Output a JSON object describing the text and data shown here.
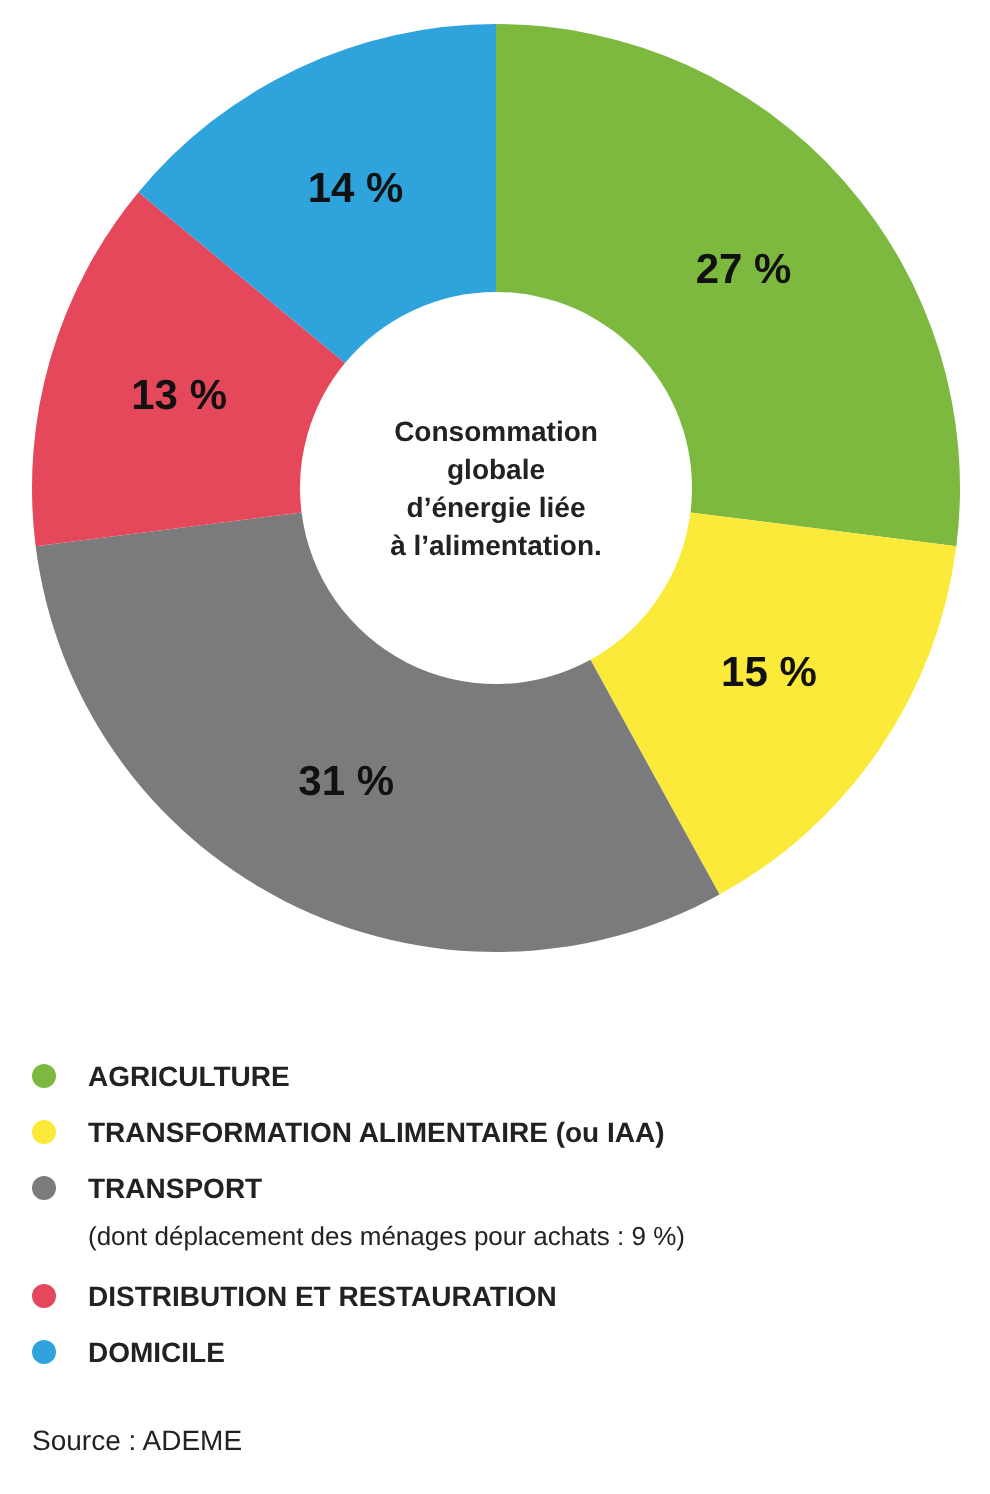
{
  "chart_data": {
    "type": "donut",
    "title": "Consommation globale d’énergie liée à l’alimentation.",
    "categories": [
      "AGRICULTURE",
      "TRANSFORMATION ALIMENTAIRE (ou IAA)",
      "TRANSPORT",
      "DISTRIBUTION ET RESTAURATION",
      "DOMICILE"
    ],
    "values": [
      27,
      15,
      31,
      13,
      14
    ],
    "value_labels": [
      "27 %",
      "15 %",
      "31 %",
      "13 %",
      "14 %"
    ],
    "colors": [
      "#7cb93e",
      "#fcea3a",
      "#7b7b7d",
      "#e5485b",
      "#2fa3dc"
    ],
    "legend": "bottom",
    "annotations": [
      "(dont déplacement des ménages pour achats : 9 %)",
      "Source : ADEME"
    ]
  }
}
